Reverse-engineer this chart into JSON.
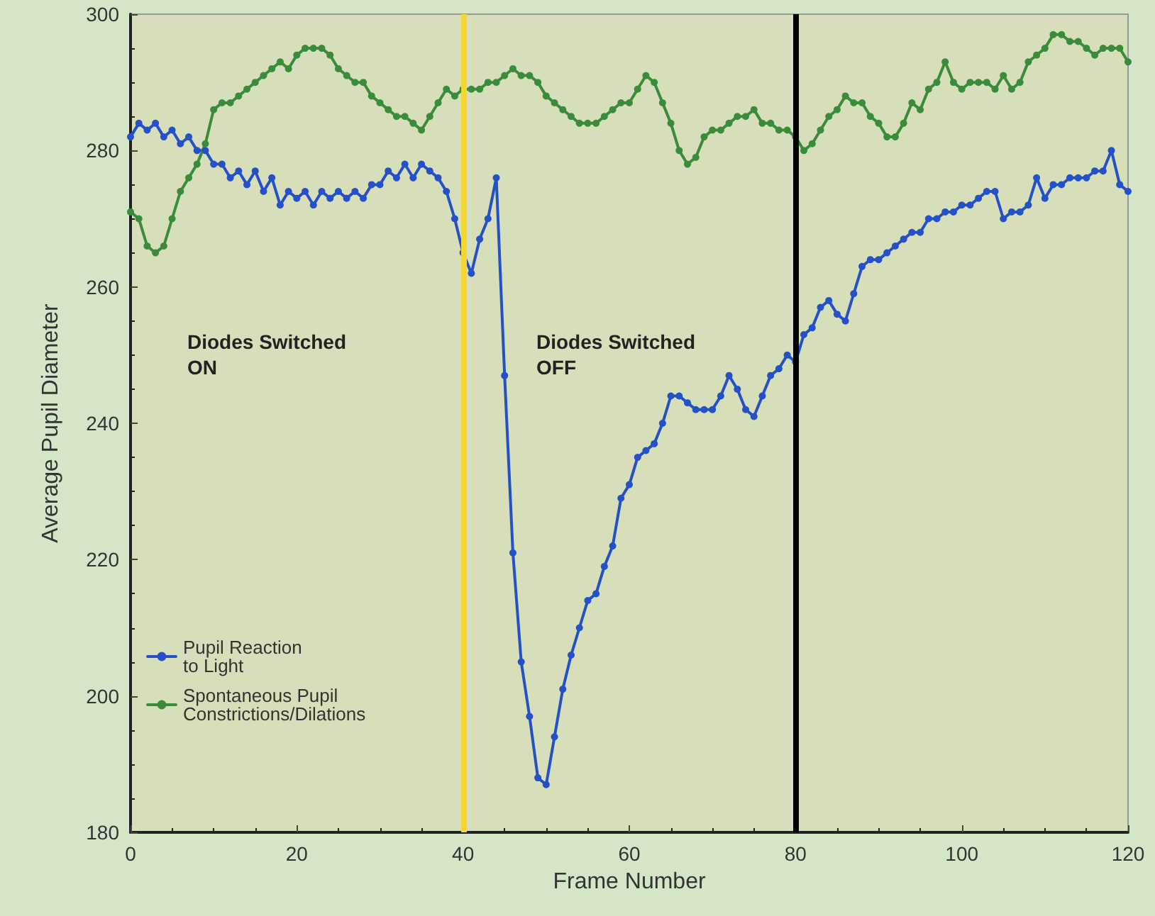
{
  "chart_data": {
    "type": "line",
    "xlabel": "Frame Number",
    "ylabel": "Average Pupil Diameter",
    "x": [
      0,
      1,
      2,
      3,
      4,
      5,
      6,
      7,
      8,
      9,
      10,
      11,
      12,
      13,
      14,
      15,
      16,
      17,
      18,
      19,
      20,
      21,
      22,
      23,
      24,
      25,
      26,
      27,
      28,
      29,
      30,
      31,
      32,
      33,
      34,
      35,
      36,
      37,
      38,
      39,
      40,
      41,
      42,
      43,
      44,
      45,
      46,
      47,
      48,
      49,
      50,
      51,
      52,
      53,
      54,
      55,
      56,
      57,
      58,
      59,
      60,
      61,
      62,
      63,
      64,
      65,
      66,
      67,
      68,
      69,
      70,
      71,
      72,
      73,
      74,
      75,
      76,
      77,
      78,
      79,
      80,
      81,
      82,
      83,
      84,
      85,
      86,
      87,
      88,
      89,
      90,
      91,
      92,
      93,
      94,
      95,
      96,
      97,
      98,
      99,
      100,
      101,
      102,
      103,
      104,
      105,
      106,
      107,
      108,
      109,
      110,
      111,
      112,
      113,
      114,
      115,
      116,
      117,
      118,
      119,
      120
    ],
    "series": [
      {
        "name": "Pupil Reaction\nto Light",
        "color": "#2450c8",
        "values": [
          282,
          284,
          283,
          284,
          282,
          283,
          281,
          282,
          280,
          280,
          278,
          278,
          276,
          277,
          275,
          277,
          274,
          276,
          272,
          274,
          273,
          274,
          272,
          274,
          273,
          274,
          273,
          274,
          273,
          275,
          275,
          277,
          276,
          278,
          276,
          278,
          277,
          276,
          274,
          270,
          265,
          262,
          267,
          270,
          276,
          247,
          221,
          205,
          197,
          188,
          187,
          194,
          201,
          206,
          210,
          214,
          215,
          219,
          222,
          229,
          231,
          235,
          236,
          237,
          240,
          244,
          244,
          243,
          242,
          242,
          242,
          244,
          247,
          245,
          242,
          241,
          244,
          247,
          248,
          250,
          249,
          253,
          254,
          257,
          258,
          256,
          255,
          259,
          263,
          264,
          264,
          265,
          266,
          267,
          268,
          268,
          270,
          270,
          271,
          271,
          272,
          272,
          273,
          274,
          274,
          270,
          271,
          271,
          272,
          276,
          273,
          275,
          275,
          276,
          276,
          276,
          277,
          277,
          280,
          275,
          274
        ]
      },
      {
        "name": "Spontaneous Pupil\nConstrictions/Dilations",
        "color": "#3a8c3a",
        "values": [
          271,
          270,
          266,
          265,
          266,
          270,
          274,
          276,
          278,
          281,
          286,
          287,
          287,
          288,
          289,
          290,
          291,
          292,
          293,
          292,
          294,
          295,
          295,
          295,
          294,
          292,
          291,
          290,
          290,
          288,
          287,
          286,
          285,
          285,
          284,
          283,
          285,
          287,
          289,
          288,
          289,
          289,
          289,
          290,
          290,
          291,
          292,
          291,
          291,
          290,
          288,
          287,
          286,
          285,
          284,
          284,
          284,
          285,
          286,
          287,
          287,
          289,
          291,
          290,
          287,
          284,
          280,
          278,
          279,
          282,
          283,
          283,
          284,
          285,
          285,
          286,
          284,
          284,
          283,
          283,
          282,
          280,
          281,
          283,
          285,
          286,
          288,
          287,
          287,
          285,
          284,
          282,
          282,
          284,
          287,
          286,
          289,
          290,
          293,
          290,
          289,
          290,
          290,
          290,
          289,
          291,
          289,
          290,
          293,
          294,
          295,
          297,
          297,
          296,
          296,
          295,
          294,
          295,
          295,
          295,
          293
        ]
      }
    ],
    "xlim": [
      0,
      120
    ],
    "xticks": [
      0,
      20,
      40,
      60,
      80,
      100,
      120
    ],
    "ylim": [
      180,
      300
    ],
    "yticks": [
      180,
      200,
      220,
      240,
      260,
      280,
      300
    ],
    "ref_lines": [
      {
        "axis": "x",
        "value": 40,
        "color": "#f5d632"
      },
      {
        "axis": "x",
        "value": 80,
        "color": "#000000"
      }
    ],
    "annotations": [
      "Diodes Switched\nON",
      "Diodes Switched\nOFF"
    ],
    "legend": "bottom left",
    "marker": "circle",
    "line_style": "solid",
    "grid": false
  }
}
